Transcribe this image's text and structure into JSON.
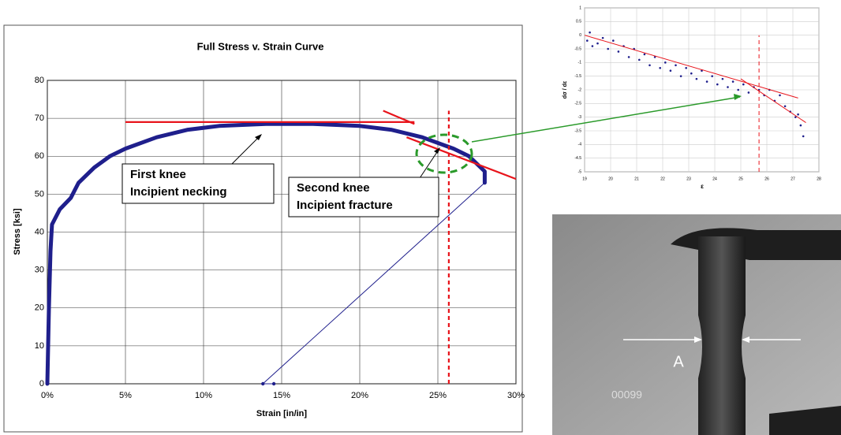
{
  "chart_data": [
    {
      "type": "line",
      "title": "Full Stress v. Strain Curve",
      "x_label": "Strain [in/in]",
      "y_label": "Stress [ksi]",
      "series": [
        {
          "color": "#1f1f8c",
          "x": [
            0,
            0.001,
            0.002,
            0.003,
            0.008,
            0.015,
            0.02,
            0.03,
            0.04,
            0.05,
            0.07,
            0.09,
            0.11,
            0.14,
            0.17,
            0.2,
            0.22,
            0.24,
            0.26,
            0.27,
            0.28,
            0.28
          ],
          "values": [
            0,
            20,
            35,
            42,
            46,
            49,
            53,
            57,
            60,
            62,
            65,
            67,
            68,
            68.5,
            68.5,
            68,
            67,
            65,
            62,
            60,
            56,
            53
          ]
        },
        {
          "color": "#1f1f8c",
          "x": [
            0.28,
            0.138,
            0.145
          ],
          "values": [
            53,
            0,
            0
          ]
        }
      ],
      "reference_lines": [
        {
          "color": "#e8141b",
          "dashed": false,
          "x": [
            0.05,
            0.235
          ],
          "values": [
            69,
            69
          ]
        },
        {
          "color": "#e8141b",
          "dashed": false,
          "x": [
            0.215,
            0.235
          ],
          "values": [
            72,
            68.5
          ]
        },
        {
          "color": "#e8141b",
          "dashed": false,
          "x": [
            0.23,
            0.3
          ],
          "values": [
            65,
            54
          ]
        },
        {
          "color": "#e8141b",
          "dashed": true,
          "x": [
            0.257,
            0.257
          ],
          "values": [
            0,
            72
          ]
        }
      ],
      "annotations": [
        "First knee",
        "Incipient necking",
        "Second knee",
        "Incipient fracture"
      ],
      "xlim": [
        0,
        0.3
      ],
      "ylim": [
        0,
        80
      ],
      "xticks": [
        {
          "value": 0,
          "label": "0%"
        },
        {
          "value": 0.05,
          "label": "5%"
        },
        {
          "value": 0.1,
          "label": "10%"
        },
        {
          "value": 0.15,
          "label": "15%"
        },
        {
          "value": 0.2,
          "label": "20%"
        },
        {
          "value": 0.25,
          "label": "25%"
        },
        {
          "value": 0.3,
          "label": "30%"
        }
      ],
      "yticks": [
        0,
        10,
        20,
        30,
        40,
        50,
        60,
        70,
        80
      ],
      "grid": true
    },
    {
      "type": "scatter",
      "x_label": "ε",
      "y_label": "dσ / dε",
      "series": [
        {
          "color": "#1f1f8c",
          "x": [
            19.1,
            19.2,
            19.3,
            19.5,
            19.7,
            19.9,
            20.1,
            20.3,
            20.5,
            20.7,
            20.9,
            21.1,
            21.3,
            21.5,
            21.7,
            21.9,
            22.1,
            22.3,
            22.5,
            22.7,
            22.9,
            23.1,
            23.3,
            23.5,
            23.7,
            23.9,
            24.1,
            24.3,
            24.5,
            24.7,
            24.9,
            25.1,
            25.3,
            25.5,
            25.7,
            25.9,
            26.1,
            26.3,
            26.5,
            26.7,
            26.9,
            27.1,
            27.2,
            27.3,
            27.4
          ],
          "values": [
            -0.2,
            0.1,
            -0.4,
            -0.3,
            -0.1,
            -0.5,
            -0.2,
            -0.6,
            -0.4,
            -0.8,
            -0.5,
            -0.9,
            -0.7,
            -1.1,
            -0.8,
            -1.2,
            -1.0,
            -1.3,
            -1.1,
            -1.5,
            -1.2,
            -1.4,
            -1.6,
            -1.3,
            -1.7,
            -1.5,
            -1.8,
            -1.6,
            -1.9,
            -1.7,
            -2.0,
            -1.8,
            -2.1,
            -1.9,
            -2.0,
            -2.2,
            -2.0,
            -2.4,
            -2.2,
            -2.6,
            -2.8,
            -3.0,
            -2.9,
            -3.3,
            -3.7
          ]
        }
      ],
      "reference_lines": [
        {
          "color": "#e8141b",
          "dashed": false,
          "x": [
            19,
            27.2
          ],
          "values": [
            0,
            -2.3
          ]
        },
        {
          "color": "#e8141b",
          "dashed": false,
          "x": [
            25,
            27.5
          ],
          "values": [
            -1.6,
            -3.2
          ]
        },
        {
          "color": "#e8141b",
          "dashed": true,
          "x": [
            25.7,
            25.7
          ],
          "values": [
            -5,
            0
          ]
        }
      ],
      "xlim": [
        19,
        28
      ],
      "ylim": [
        -5,
        1
      ],
      "xticks": [
        19,
        20,
        21,
        22,
        23,
        24,
        25,
        26,
        27,
        28
      ],
      "yticks": [
        1,
        0.5,
        0,
        -0.5,
        -1,
        -1.5,
        -2,
        -2.5,
        -3,
        -3.5,
        -4,
        -4.5,
        -5
      ],
      "grid": true
    }
  ],
  "photo": {
    "label": "A",
    "frame": "00099"
  }
}
